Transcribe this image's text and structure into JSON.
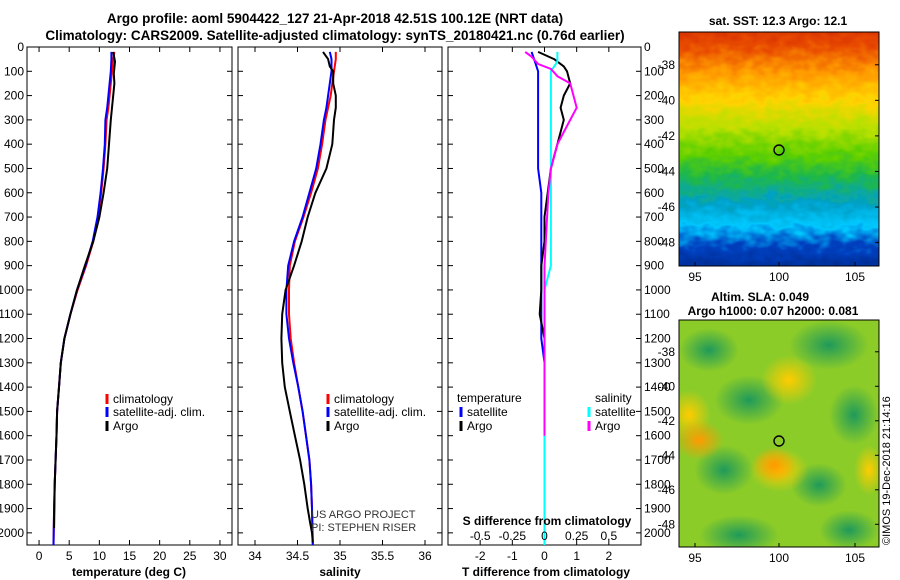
{
  "header": {
    "line1": "Argo profile: aoml 5904422_127 21-Apr-2018 42.51S 100.12E (NRT data)",
    "line2": "Climatology: CARS2009. Satellite-adjusted climatology: synTS_20180421.nc (0.76d earlier)"
  },
  "colors": {
    "climatology": "#ff0000",
    "satellite": "#0000ff",
    "argo": "#000000",
    "salinity_satellite": "#00ffff",
    "salinity_argo": "#ff00ff"
  },
  "depth_axis": {
    "range": [
      0,
      2050
    ],
    "ticks": [
      0,
      100,
      200,
      300,
      400,
      500,
      600,
      700,
      800,
      900,
      1000,
      1100,
      1200,
      1300,
      1400,
      1500,
      1600,
      1700,
      1800,
      1900,
      2000
    ]
  },
  "chart_data": [
    {
      "type": "line",
      "id": "temperature",
      "xlabel": "temperature (deg C)",
      "xlim": [
        -2,
        32
      ],
      "xticks": [
        0,
        5,
        10,
        15,
        20,
        25,
        30
      ],
      "xtick_labels": [
        "0",
        "5",
        "10",
        "15",
        "20",
        "25",
        "30"
      ],
      "legend": [
        "climatology",
        "satellite-adj. clim.",
        "Argo"
      ],
      "series": [
        {
          "name": "climatology",
          "color": "#ff0000",
          "width": 2,
          "x": [
            12.5,
            12.3,
            12.1,
            11.9,
            11.7,
            11.5,
            11.2,
            11.0,
            10.7,
            10.3,
            9.8,
            9.0,
            7.8,
            6.4,
            5.2,
            4.2,
            3.6,
            3.3,
            3.0,
            2.9,
            2.75,
            2.6,
            2.5,
            2.4
          ],
          "y": [
            20,
            50,
            100,
            150,
            200,
            250,
            300,
            400,
            500,
            600,
            700,
            800,
            900,
            1000,
            1100,
            1200,
            1300,
            1400,
            1500,
            1600,
            1700,
            1800,
            1900,
            2050
          ]
        },
        {
          "name": "satellite-adj. clim.",
          "color": "#0000ff",
          "width": 2,
          "x": [
            12.0,
            12.0,
            11.9,
            11.7,
            11.5,
            11.3,
            11.0,
            10.9,
            10.6,
            10.2,
            9.7,
            8.9,
            7.7,
            6.3,
            5.2,
            4.2,
            3.6,
            3.3,
            3.0,
            2.9,
            2.75,
            2.6,
            2.5,
            2.4
          ],
          "y": [
            20,
            50,
            100,
            150,
            200,
            250,
            300,
            400,
            500,
            600,
            700,
            800,
            900,
            1000,
            1100,
            1200,
            1300,
            1400,
            1500,
            1600,
            1700,
            1800,
            1900,
            2050
          ]
        },
        {
          "name": "Argo",
          "color": "#000000",
          "width": 2,
          "x": [
            12.3,
            12.6,
            12.4,
            12.5,
            12.3,
            12.1,
            11.9,
            11.6,
            11.3,
            10.7,
            10.0,
            9.0,
            7.6,
            6.3,
            5.2,
            4.2,
            3.6,
            3.3,
            3.0,
            2.9,
            2.75,
            2.6,
            2.5
          ],
          "y": [
            20,
            60,
            110,
            150,
            200,
            250,
            300,
            400,
            500,
            600,
            700,
            800,
            900,
            1000,
            1100,
            1200,
            1300,
            1400,
            1500,
            1600,
            1700,
            1800,
            1980
          ]
        }
      ]
    },
    {
      "type": "line",
      "id": "salinity",
      "xlabel": "salinity",
      "xlim": [
        33.8,
        36.2
      ],
      "xticks": [
        34,
        34.5,
        35,
        35.5,
        36
      ],
      "xtick_labels": [
        "34",
        "34.5",
        "35",
        "35.5",
        "36"
      ],
      "legend": [
        "climatology",
        "satellite-adj. clim.",
        "Argo"
      ],
      "annotations": [
        "US ARGO PROJECT",
        "PI: STEPHEN RISER"
      ],
      "series": [
        {
          "name": "climatology",
          "color": "#ff0000",
          "width": 2,
          "x": [
            34.95,
            34.95,
            34.93,
            34.91,
            34.89,
            34.86,
            34.83,
            34.79,
            34.74,
            34.66,
            34.57,
            34.47,
            34.41,
            34.4,
            34.4,
            34.42,
            34.46,
            34.51,
            34.56,
            34.6,
            34.64,
            34.66,
            34.67,
            34.68
          ],
          "y": [
            20,
            50,
            100,
            150,
            200,
            250,
            300,
            400,
            500,
            600,
            700,
            800,
            900,
            1000,
            1100,
            1200,
            1300,
            1400,
            1500,
            1600,
            1700,
            1800,
            1900,
            2050
          ]
        },
        {
          "name": "satellite-adj. clim.",
          "color": "#0000ff",
          "width": 2,
          "x": [
            34.88,
            34.9,
            34.9,
            34.88,
            34.86,
            34.84,
            34.81,
            34.77,
            34.72,
            34.64,
            34.56,
            34.46,
            34.39,
            34.37,
            34.37,
            34.4,
            34.45,
            34.51,
            34.56,
            34.6,
            34.64,
            34.66,
            34.67,
            34.68
          ],
          "y": [
            20,
            50,
            100,
            150,
            200,
            250,
            300,
            400,
            500,
            600,
            700,
            800,
            900,
            1000,
            1100,
            1200,
            1300,
            1400,
            1500,
            1600,
            1700,
            1800,
            1900,
            2050
          ]
        },
        {
          "name": "Argo",
          "color": "#000000",
          "width": 2,
          "x": [
            34.8,
            34.86,
            34.88,
            34.92,
            34.92,
            34.95,
            34.95,
            34.93,
            34.91,
            34.84,
            34.71,
            34.62,
            34.55,
            34.46,
            34.36,
            34.32,
            34.31,
            34.32,
            34.35,
            34.41,
            34.47,
            34.53,
            34.58,
            34.62,
            34.65,
            34.67,
            34.68
          ],
          "y": [
            20,
            50,
            80,
            100,
            150,
            200,
            250,
            300,
            400,
            500,
            600,
            700,
            800,
            900,
            1000,
            1100,
            1200,
            1300,
            1400,
            1500,
            1600,
            1700,
            1800,
            1900,
            1960,
            2000,
            2040
          ]
        }
      ]
    },
    {
      "type": "line",
      "id": "difference",
      "xlabel": "T difference from climatology",
      "xlim": [
        -3,
        3
      ],
      "xticks": [
        -2,
        -1,
        0,
        1,
        2
      ],
      "xtick_labels": [
        "-2",
        "-1",
        "0",
        "1",
        "2"
      ],
      "secondary_xlabel": "S difference from climatology",
      "secondary_xlim": [
        -0.75,
        0.75
      ],
      "secondary_xticks": [
        -0.5,
        -0.25,
        0,
        0.25,
        0.5
      ],
      "secondary_xtick_labels": [
        "-0.5",
        "-0.25",
        "0",
        "0.25",
        "0.5"
      ],
      "legend_temperature": {
        "title": "temperature",
        "items": [
          "satellite",
          "Argo"
        ]
      },
      "legend_salinity": {
        "title": "salinity",
        "items": [
          "satellite",
          "Argo"
        ]
      },
      "series": [
        {
          "name": "T satellite",
          "color": "#0000ff",
          "width": 2,
          "x": [
            -0.4,
            -0.3,
            -0.2,
            -0.2,
            -0.2,
            -0.2,
            -0.2,
            -0.1,
            -0.1,
            -0.1,
            -0.1,
            -0.1,
            -0.1,
            -0.1,
            0,
            0,
            0,
            0,
            0,
            0,
            0,
            0,
            0
          ],
          "y": [
            20,
            60,
            100,
            200,
            300,
            400,
            500,
            600,
            700,
            800,
            900,
            1000,
            1100,
            1200,
            1300,
            1400,
            1500,
            1600,
            1700,
            1800,
            1900,
            2000,
            2050
          ]
        },
        {
          "name": "T Argo",
          "color": "#000000",
          "width": 2,
          "x": [
            -0.2,
            0.3,
            0.6,
            0.7,
            0.8,
            0.6,
            0.5,
            0.6,
            0.5,
            0.4,
            0.3,
            0.2,
            0.1,
            0,
            0,
            -0.1,
            -0.1,
            -0.15,
            0,
            0,
            0,
            0,
            0,
            0,
            0
          ],
          "y": [
            20,
            50,
            80,
            100,
            150,
            200,
            250,
            300,
            350,
            400,
            450,
            500,
            600,
            700,
            800,
            900,
            1000,
            1100,
            1200,
            1300,
            1400,
            1500,
            1600,
            1800,
            2000
          ]
        },
        {
          "name": "S satellite",
          "color": "#00ffff",
          "width": 2,
          "x": [
            0.1,
            0.1,
            0.05,
            0.05,
            0.05,
            0.05,
            0.05,
            0.05,
            0.05,
            0.05,
            0.05,
            0.0,
            0.0,
            0.0,
            0.0,
            0.0,
            0.0,
            0.0,
            0.0,
            0.0,
            0.0,
            0.0,
            0.0,
            0.0
          ],
          "y": [
            20,
            60,
            100,
            200,
            300,
            400,
            500,
            600,
            700,
            800,
            900,
            1000,
            1100,
            1200,
            1300,
            1400,
            1500,
            1600,
            1700,
            1800,
            1900,
            2000,
            2040,
            2050
          ]
        },
        {
          "name": "S Argo",
          "color": "#ff00ff",
          "width": 2,
          "x": [
            -0.15,
            -0.1,
            -0.05,
            0.05,
            0.1,
            0.2,
            0.25,
            0.2,
            0.15,
            0.1,
            0.05,
            0.03,
            0.02,
            0.01,
            0,
            0,
            0,
            0,
            0,
            0,
            0,
            0
          ],
          "y": [
            20,
            40,
            70,
            90,
            120,
            150,
            250,
            300,
            350,
            400,
            500,
            600,
            700,
            800,
            900,
            1000,
            1100,
            1200,
            1300,
            1400,
            1500,
            1600
          ]
        }
      ]
    }
  ],
  "maps": [
    {
      "id": "sst",
      "title": "sat. SST: 12.3 Argo: 12.1",
      "lon_ticks": [
        "95",
        "100",
        "105"
      ],
      "lat_ticks": [
        "-38",
        "-40",
        "-42",
        "-44",
        "-46",
        "-48"
      ]
    },
    {
      "id": "sla",
      "title1": "Altim. SLA: 0.049",
      "title2": "Argo h1000: 0.07 h2000: 0.081",
      "lon_ticks": [
        "95",
        "100",
        "105"
      ],
      "lat_ticks": [
        "-38",
        "-40",
        "-42",
        "-44",
        "-46",
        "-48"
      ]
    }
  ],
  "footer": {
    "credit": "©IMOS 19-Dec-2018 21:14:16"
  }
}
